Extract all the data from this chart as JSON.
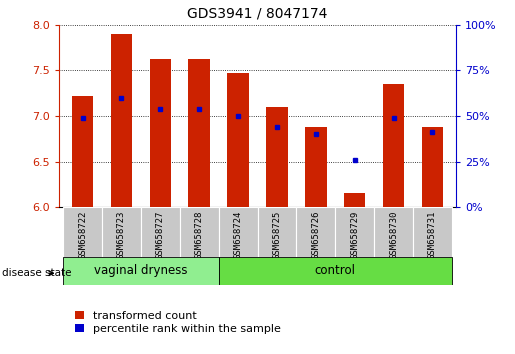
{
  "title": "GDS3941 / 8047174",
  "samples": [
    "GSM658722",
    "GSM658723",
    "GSM658727",
    "GSM658728",
    "GSM658724",
    "GSM658725",
    "GSM658726",
    "GSM658729",
    "GSM658730",
    "GSM658731"
  ],
  "red_values": [
    7.22,
    7.9,
    7.62,
    7.62,
    7.47,
    7.1,
    6.88,
    6.15,
    7.35,
    6.88
  ],
  "blue_values_left": [
    6.98,
    7.2,
    7.08,
    7.08,
    7.0,
    6.88,
    6.8,
    6.52,
    6.98,
    6.82
  ],
  "ylim_left": [
    6.0,
    8.0
  ],
  "ylim_right": [
    0,
    100
  ],
  "yticks_left": [
    6.0,
    6.5,
    7.0,
    7.5,
    8.0
  ],
  "yticks_right": [
    0,
    25,
    50,
    75,
    100
  ],
  "groups": [
    {
      "label": "vaginal dryness",
      "start": 0,
      "end": 4,
      "color": "#90EE90"
    },
    {
      "label": "control",
      "start": 4,
      "end": 10,
      "color": "#66DD44"
    }
  ],
  "group_label": "disease state",
  "bar_color": "#CC2200",
  "dot_color": "#0000CC",
  "bar_width": 0.55,
  "legend_red": "transformed count",
  "legend_blue": "percentile rank within the sample",
  "left_axis_color": "#CC2200",
  "right_axis_color": "#0000CC",
  "grid_color": "black",
  "bg_label": "#C8C8C8"
}
